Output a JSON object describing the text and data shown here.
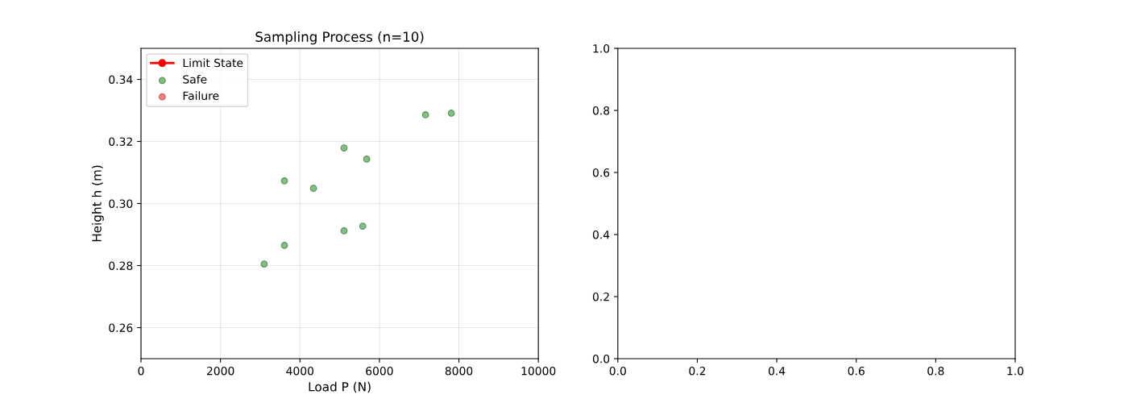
{
  "chart_data": [
    {
      "type": "scatter",
      "title": "Sampling Process (n=10)",
      "xlabel": "Load P (N)",
      "ylabel": "Height h (m)",
      "xlim": [
        0,
        10000
      ],
      "xticks": [
        0,
        2000,
        4000,
        6000,
        8000,
        10000
      ],
      "ylim": [
        0.25,
        0.35
      ],
      "yticks": [
        {
          "value": 0.26,
          "label": "0.26"
        },
        {
          "value": 0.28,
          "label": "0.28"
        },
        {
          "value": 0.3,
          "label": "0.30"
        },
        {
          "value": 0.32,
          "label": "0.32"
        },
        {
          "value": 0.34,
          "label": "0.34"
        }
      ],
      "grid": true,
      "legend": "top left",
      "marker": "circle",
      "series": [
        {
          "name": "Limit State",
          "type": "line",
          "color": "#ff0000"
        },
        {
          "name": "Safe",
          "color": "#7fbf7f",
          "x": [
            3100,
            3610,
            3610,
            4340,
            5110,
            5110,
            5580,
            5680,
            7160,
            7810
          ],
          "values": [
            0.2805,
            0.2865,
            0.3073,
            0.3049,
            0.3179,
            0.2912,
            0.2927,
            0.3143,
            0.3286,
            0.3291
          ]
        },
        {
          "name": "Failure",
          "color": "#ff7f7f"
        }
      ]
    },
    {
      "type": "scatter",
      "xlim": [
        0,
        1
      ],
      "xticks": [
        {
          "value": 0,
          "label": "0.0"
        },
        0.2,
        0.4,
        0.6,
        0.8,
        {
          "value": 1,
          "label": "1.0"
        }
      ],
      "ylim": [
        0,
        1
      ],
      "yticks": [
        {
          "value": 0,
          "label": "0.0"
        },
        0.2,
        0.4,
        0.6,
        0.8,
        {
          "value": 1,
          "label": "1.0"
        }
      ]
    }
  ]
}
